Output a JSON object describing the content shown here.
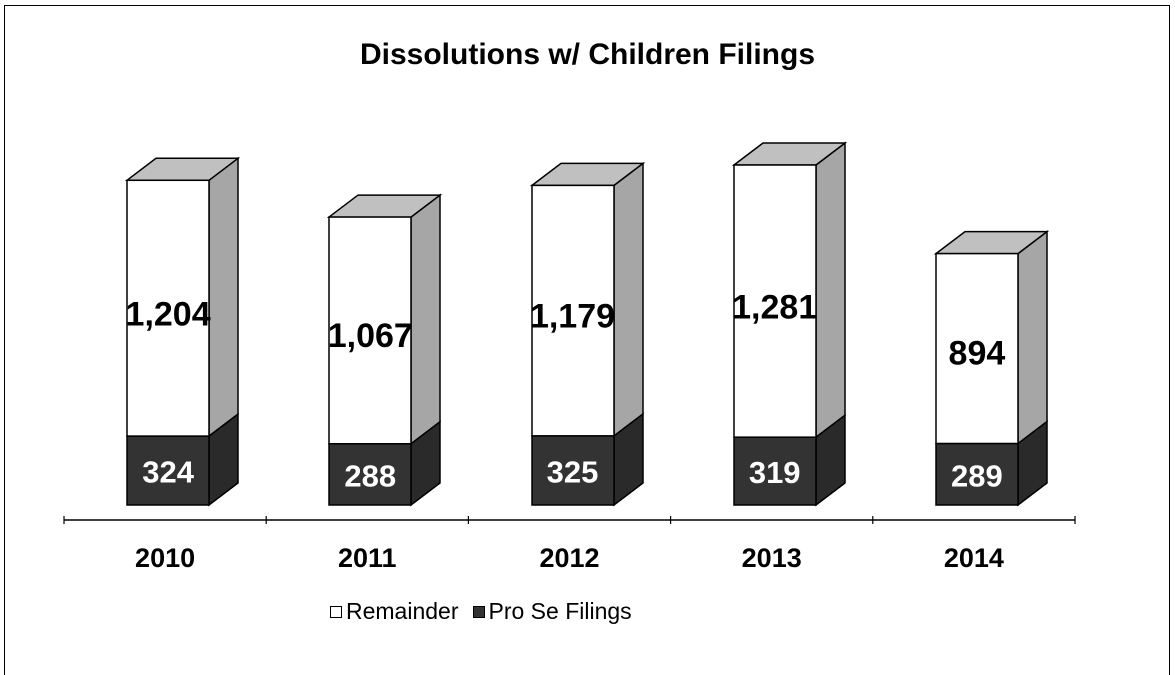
{
  "chart_data": {
    "type": "bar",
    "stacked": true,
    "three_d": true,
    "title": "Dissolutions w/ Children Filings",
    "categories": [
      "2010",
      "2011",
      "2012",
      "2013",
      "2014"
    ],
    "series": [
      {
        "name": "Pro Se Filings",
        "values": [
          324,
          288,
          325,
          319,
          289
        ],
        "color": "#333333",
        "label_color": "#ffffff"
      },
      {
        "name": "Remainder",
        "values": [
          1204,
          1067,
          1179,
          1281,
          894
        ],
        "color": "#ffffff",
        "label_color": "#000000"
      }
    ],
    "value_labels": {
      "Pro Se Filings": [
        "324",
        "288",
        "325",
        "319",
        "289"
      ],
      "Remainder": [
        "1,204",
        "1,067",
        "1,179",
        "1,281",
        "894"
      ]
    },
    "side_color": "#a6a6a6",
    "legend": [
      "Remainder",
      "Pro Se Filings"
    ],
    "legend_position": "bottom",
    "grid": false,
    "y_axis_visible": false
  }
}
